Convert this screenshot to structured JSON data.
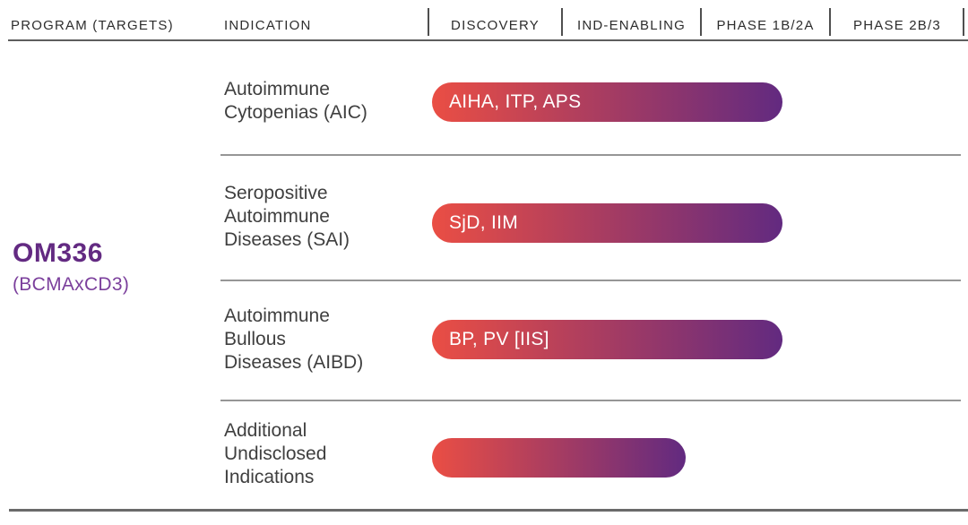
{
  "header": {
    "program_col": "PROGRAM (TARGETS)",
    "indication_col": "INDICATION",
    "phase_cols": [
      "DISCOVERY",
      "IND-ENABLING",
      "PHASE 1B/2A",
      "PHASE 2B/3"
    ]
  },
  "program": {
    "name": "OM336",
    "target": "(BCMAxCD3)"
  },
  "chart_data": {
    "type": "bar",
    "subtype": "horizontal-pipeline",
    "program": "OM336 (BCMAxCD3)",
    "stages": [
      "DISCOVERY",
      "IND-ENABLING",
      "PHASE 1B/2A",
      "PHASE 2B/3"
    ],
    "bars": [
      {
        "indication": "Autoimmune\nCytopenias (AIC)",
        "bar_label": "AIHA, ITP, APS",
        "end_stage": "PHASE 1B/2A",
        "extent_frac": 0.66
      },
      {
        "indication": "Seropositive\nAutoimmune\nDiseases (SAI)",
        "bar_label": "SjD, IIM",
        "end_stage": "PHASE 1B/2A",
        "extent_frac": 0.66
      },
      {
        "indication": "Autoimmune\nBullous\nDiseases (AIBD)",
        "bar_label": "BP, PV [IIS]",
        "end_stage": "PHASE 1B/2A",
        "extent_frac": 0.66
      },
      {
        "indication": "Additional\nUndisclosed\nIndications",
        "bar_label": "",
        "end_stage": "IND-ENABLING",
        "extent_frac": 0.48
      }
    ],
    "colors": {
      "bar_gradient_start": "#EA4E44",
      "bar_gradient_end": "#622A80",
      "bar_text": "#FFFFFF",
      "program_name_text": "#632A82",
      "program_target_text": "#7B3F9C",
      "header_text": "#2D2D2D",
      "indication_text": "#3F3F3F",
      "divider": "#969696"
    }
  }
}
